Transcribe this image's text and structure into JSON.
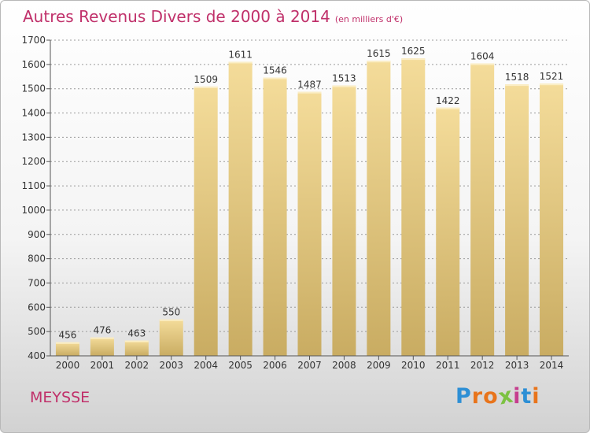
{
  "header": {
    "title": "Autres Revenus Divers de 2000 à 2014",
    "subtitle": "(en milliers d'€)"
  },
  "footer": {
    "commune": "MEYSSE",
    "logo_text": "Proxiti",
    "logo_letters": [
      "P",
      "r",
      "o",
      "x",
      "i",
      "t",
      "i"
    ],
    "logo_colors": [
      "#2d8fd5",
      "#e8741b",
      "#e8741b",
      "#7cc242",
      "#c63d8e",
      "#2d8fd5",
      "#e8741b"
    ]
  },
  "colors": {
    "accent": "#c0306a",
    "bar_light": "#f4dc9a",
    "bar_dark": "#c9ac62",
    "axis_text": "#333333",
    "grid": "#9a9a9a"
  },
  "chart_data": {
    "type": "bar",
    "title": "Autres Revenus Divers de 2000 à 2014",
    "subtitle": "(en milliers d'€)",
    "xlabel": "",
    "ylabel": "",
    "categories": [
      "2000",
      "2001",
      "2002",
      "2003",
      "2004",
      "2005",
      "2006",
      "2007",
      "2008",
      "2009",
      "2010",
      "2011",
      "2012",
      "2013",
      "2014"
    ],
    "values": [
      456,
      476,
      463,
      550,
      1509,
      1611,
      1546,
      1487,
      1513,
      1615,
      1625,
      1422,
      1604,
      1518,
      1521
    ],
    "ylim": [
      400,
      1700
    ],
    "yticks": [
      400,
      500,
      600,
      700,
      800,
      900,
      1000,
      1100,
      1200,
      1300,
      1400,
      1500,
      1600,
      1700
    ],
    "grid": "horizontal dashed",
    "legend": "none",
    "data_labels": true
  }
}
